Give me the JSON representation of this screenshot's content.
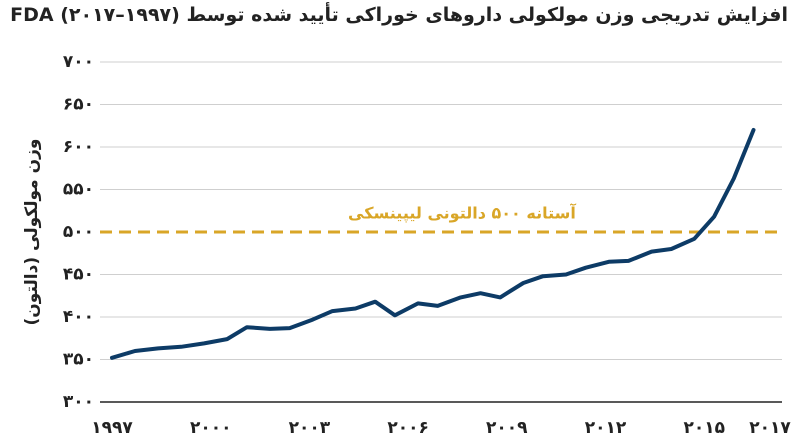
{
  "chart_data": {
    "type": "line",
    "title": "افزایش تدریجی وزن مولکولی داروهای خوراکی تأیید شده توسط FDA (۲۰۱۷–۱۹۹۷)",
    "xlabel": "",
    "ylabel": "وزن مولکولی (دالتون)",
    "xlim": [
      1997,
      2017
    ],
    "ylim": [
      300,
      700
    ],
    "y_ticks": [
      300,
      350,
      400,
      450,
      500,
      550,
      600,
      650,
      700
    ],
    "y_tick_labels": [
      "۳۰۰",
      "۳۵۰",
      "۴۰۰",
      "۴۵۰",
      "۵۰۰",
      "۵۵۰",
      "۶۰۰",
      "۶۵۰",
      "۷۰۰"
    ],
    "x_ticks": [
      1997,
      2000,
      2003,
      2006,
      2009,
      2012,
      2015,
      2017
    ],
    "x_tick_labels": [
      "۱۹۹۷",
      "۲۰۰۰",
      "۲۰۰۳",
      "۲۰۰۶",
      "۲۰۰۹",
      "۲۰۱۲",
      "۲۰۱۵",
      "۲۰۱۷"
    ],
    "grid": true,
    "series": [
      {
        "color": "#0d3b66",
        "points": [
          [
            1997,
            352
          ],
          [
            1997.7,
            360
          ],
          [
            1998.4,
            363
          ],
          [
            1999.1,
            365
          ],
          [
            1999.8,
            369
          ],
          [
            2000.5,
            374
          ],
          [
            2001.1,
            388
          ],
          [
            2001.8,
            386
          ],
          [
            2002.4,
            387
          ],
          [
            2003.1,
            397
          ],
          [
            2003.7,
            407
          ],
          [
            2004.4,
            410
          ],
          [
            2005.0,
            418
          ],
          [
            2005.6,
            402
          ],
          [
            2006.3,
            416
          ],
          [
            2006.9,
            413
          ],
          [
            2007.6,
            423
          ],
          [
            2008.2,
            428
          ],
          [
            2008.8,
            423
          ],
          [
            2009.5,
            440
          ],
          [
            2010.1,
            448
          ],
          [
            2010.8,
            450
          ],
          [
            2011.4,
            458
          ],
          [
            2012.1,
            465
          ],
          [
            2012.7,
            466
          ],
          [
            2013.4,
            477
          ],
          [
            2014.0,
            480
          ],
          [
            2014.7,
            492
          ],
          [
            2015.3,
            518
          ],
          [
            2015.9,
            563
          ],
          [
            2016.5,
            620
          ]
        ]
      }
    ],
    "threshold": {
      "value": 500,
      "label": "آستانه ۵۰۰ دالتونی لیپینسکی",
      "color": "#d9a627"
    },
    "colors": {
      "line": "#0d3b66",
      "threshold": "#d9a627",
      "grid": "#cfcfcf",
      "axis": "#222222"
    }
  }
}
